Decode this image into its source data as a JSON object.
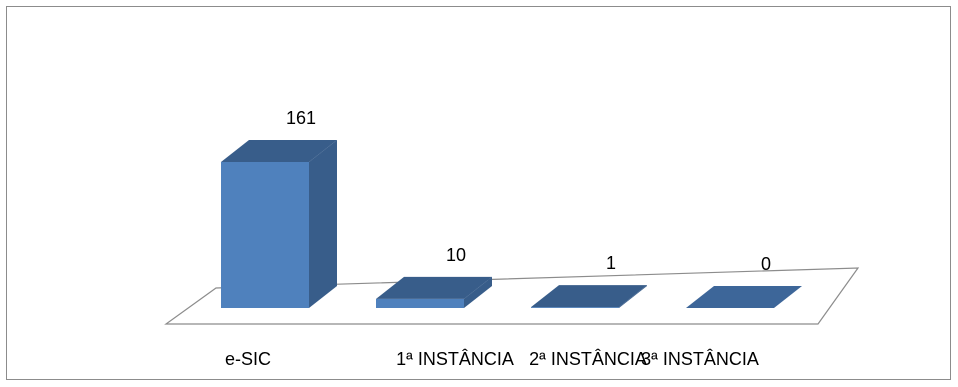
{
  "chart_data": {
    "type": "bar",
    "title": "",
    "xlabel": "",
    "ylabel": "",
    "categories": [
      "e-SIC",
      "1ª INSTÂNCIA",
      "2ª INSTÂNCIA",
      "3ª INSTÂNCIA"
    ],
    "values": [
      161,
      10,
      1,
      0
    ],
    "ylim": [
      0,
      161
    ],
    "grid": false,
    "legend": "none",
    "style": "3d-column",
    "colors": {
      "front": "#4f81bd",
      "side": "#385d8a",
      "top": "#3d6699",
      "floor_stroke": "#8c8c8c"
    }
  }
}
